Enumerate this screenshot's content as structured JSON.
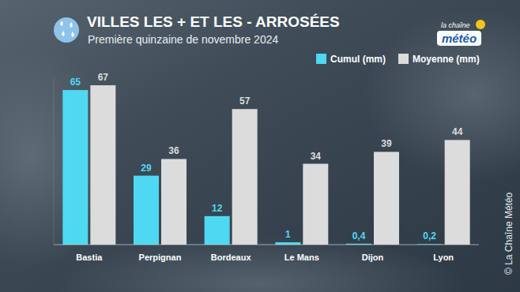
{
  "chart_data": {
    "type": "bar",
    "title": "VILLES LES + ET LES - ARROSÉES",
    "subtitle": "Première quinzaine de novembre 2024",
    "logo": [
      "la chaîne",
      "météo"
    ],
    "credit": "© La Chaîne Météo",
    "categories": [
      "Bastia",
      "Perpignan",
      "Bordeaux",
      "Le Mans",
      "Dijon",
      "Lyon"
    ],
    "series": [
      {
        "name": "Cumul (mm)",
        "color": "#4fd8f2",
        "values": [
          65,
          29,
          12,
          1,
          0.4,
          0.2
        ],
        "value_labels": [
          "65",
          "29",
          "12",
          "1",
          "0,4",
          "0,2"
        ]
      },
      {
        "name": "Moyenne (mm)",
        "color": "#dcdcdc",
        "values": [
          67,
          36,
          57,
          34,
          39,
          44
        ]
      }
    ],
    "ylim": [
      0,
      70
    ],
    "grid": false,
    "legend": "top-right",
    "data_labels": true,
    "tick_labels": "x"
  }
}
